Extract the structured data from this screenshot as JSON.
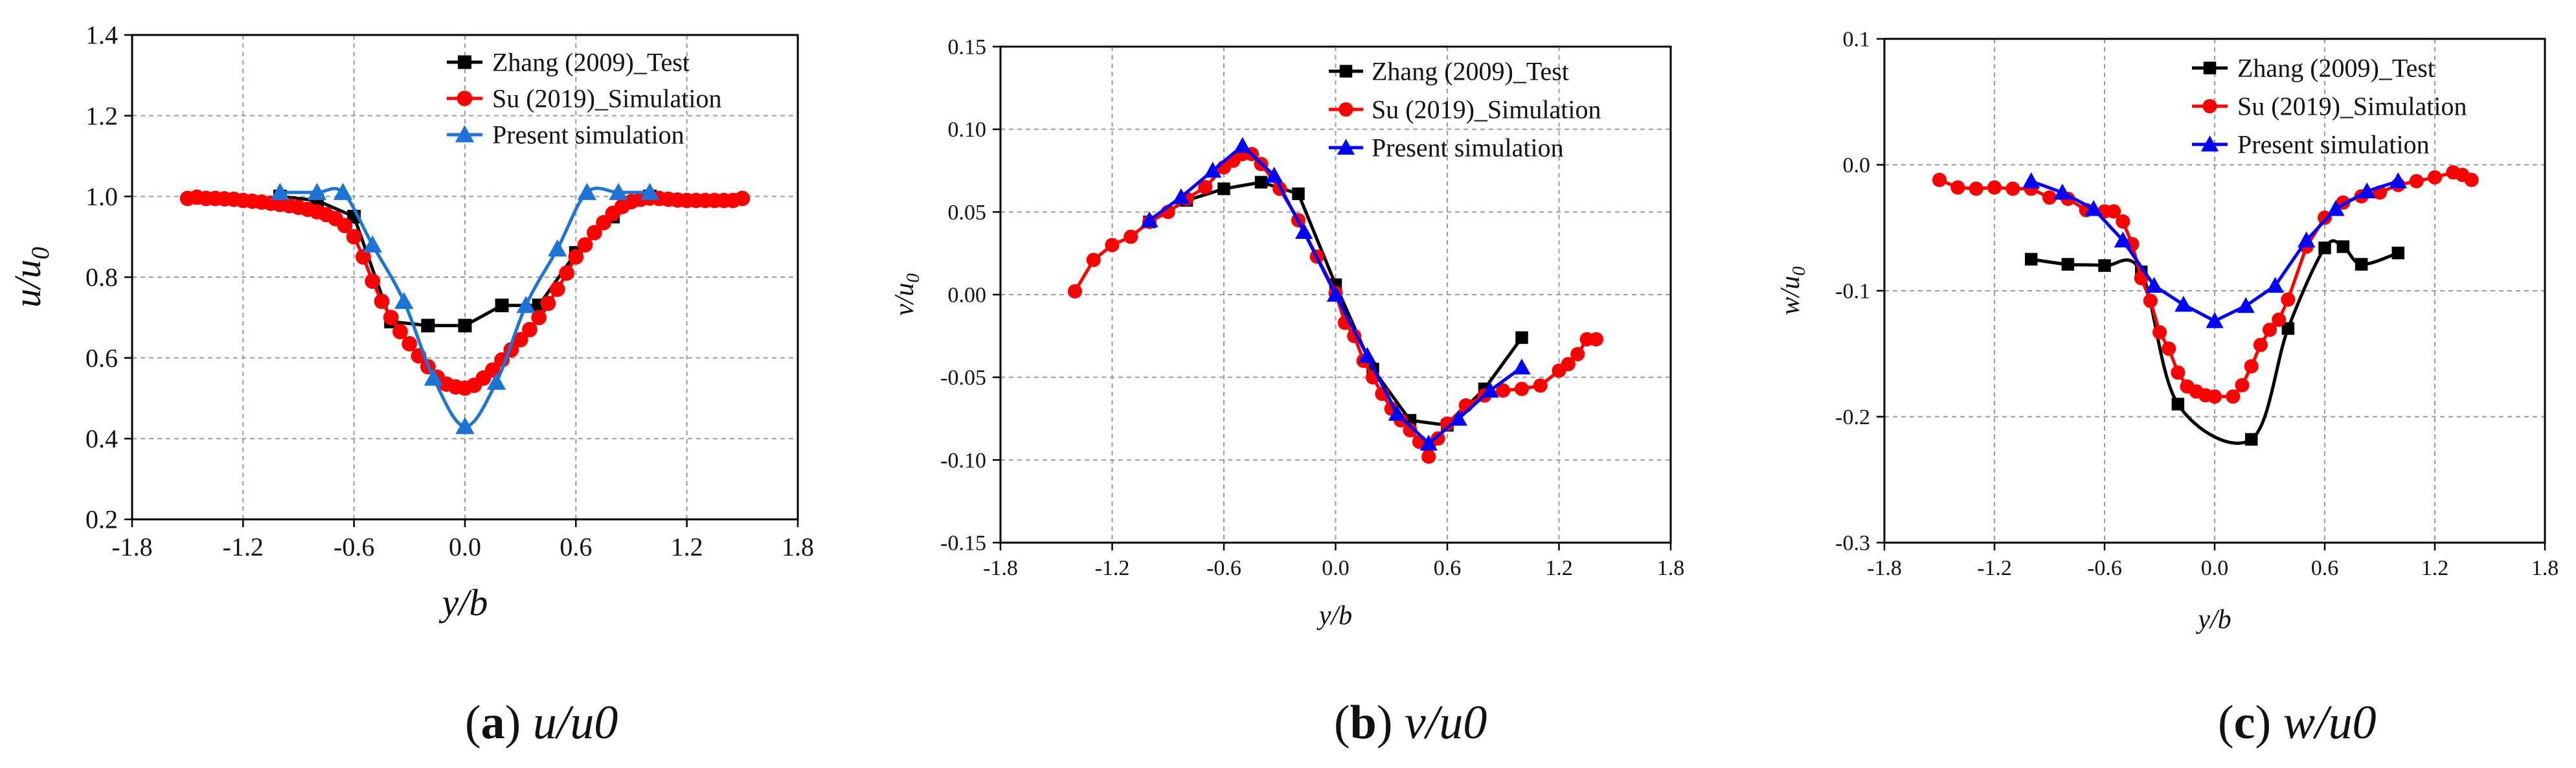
{
  "chart_data": [
    {
      "type": "line",
      "panel": "a",
      "caption_letter": "a",
      "caption_var": "u/u",
      "caption_sub": "0",
      "xlabel": "y/b",
      "ylabel_main": "u/u",
      "ylabel_sub": "0",
      "xlim": [
        -1.8,
        1.8
      ],
      "ylim": [
        0.2,
        1.4
      ],
      "xticks": [
        -1.8,
        -1.2,
        -0.6,
        0.0,
        0.6,
        1.2,
        1.8
      ],
      "xtick_labels": [
        "-1.8",
        "-1.2",
        "-0.6",
        "0.0",
        "0.6",
        "1.2",
        "1.8"
      ],
      "yticks": [
        0.2,
        0.4,
        0.6,
        0.8,
        1.0,
        1.2,
        1.4
      ],
      "ytick_labels": [
        "0.2",
        "0.4",
        "0.6",
        "0.8",
        "1.0",
        "1.2",
        "1.4"
      ],
      "grid": true,
      "legend_position": "top-right",
      "series": [
        {
          "name": "Zhang (2009)_Test",
          "color": "#000000",
          "marker": "square",
          "x": [
            -1.0,
            -0.8,
            -0.6,
            -0.4,
            -0.2,
            0.0,
            0.2,
            0.4,
            0.6,
            0.8,
            1.0
          ],
          "y": [
            1.0,
            0.99,
            0.95,
            0.69,
            0.68,
            0.68,
            0.73,
            0.73,
            0.86,
            0.95,
            1.0
          ]
        },
        {
          "name": "Su (2019)_Simulation",
          "color": "#ff0000",
          "marker": "circle",
          "x": [
            -1.5,
            -1.45,
            -1.4,
            -1.35,
            -1.3,
            -1.25,
            -1.2,
            -1.15,
            -1.1,
            -1.05,
            -1.0,
            -0.95,
            -0.9,
            -0.85,
            -0.8,
            -0.75,
            -0.7,
            -0.65,
            -0.6,
            -0.55,
            -0.5,
            -0.45,
            -0.4,
            -0.35,
            -0.3,
            -0.25,
            -0.2,
            -0.15,
            -0.1,
            -0.05,
            0.0,
            0.05,
            0.1,
            0.15,
            0.2,
            0.25,
            0.3,
            0.35,
            0.4,
            0.45,
            0.5,
            0.55,
            0.6,
            0.65,
            0.7,
            0.75,
            0.8,
            0.85,
            0.9,
            0.95,
            1.0,
            1.05,
            1.1,
            1.15,
            1.2,
            1.25,
            1.3,
            1.35,
            1.4,
            1.45,
            1.5
          ],
          "y": [
            0.995,
            0.998,
            0.995,
            0.995,
            0.994,
            0.993,
            0.99,
            0.988,
            0.986,
            0.983,
            0.98,
            0.977,
            0.973,
            0.968,
            0.962,
            0.955,
            0.945,
            0.928,
            0.9,
            0.85,
            0.79,
            0.74,
            0.7,
            0.665,
            0.635,
            0.605,
            0.578,
            0.552,
            0.535,
            0.528,
            0.525,
            0.532,
            0.55,
            0.57,
            0.595,
            0.62,
            0.645,
            0.67,
            0.7,
            0.735,
            0.77,
            0.81,
            0.85,
            0.88,
            0.91,
            0.935,
            0.958,
            0.975,
            0.987,
            0.993,
            0.996,
            0.995,
            0.993,
            0.991,
            0.99,
            0.99,
            0.99,
            0.99,
            0.99,
            0.99,
            0.995
          ]
        },
        {
          "name": "Present simulation",
          "color": "#1e74d6",
          "marker": "triangle",
          "x": [
            -1.0,
            -0.8,
            -0.66,
            -0.5,
            -0.33,
            -0.17,
            0.0,
            0.17,
            0.33,
            0.5,
            0.66,
            0.83,
            1.0
          ],
          "y": [
            1.01,
            1.01,
            1.01,
            0.88,
            0.74,
            0.55,
            0.43,
            0.54,
            0.73,
            0.87,
            1.01,
            1.01,
            1.01
          ],
          "smooth": true
        }
      ]
    },
    {
      "type": "line",
      "panel": "b",
      "caption_letter": "b",
      "caption_var": "v/u",
      "caption_sub": "0",
      "xlabel": "y/b",
      "ylabel_main": "v/u",
      "ylabel_sub": "0",
      "xlim": [
        -1.8,
        1.8
      ],
      "ylim": [
        -0.15,
        0.15
      ],
      "xticks": [
        -1.8,
        -1.2,
        -0.6,
        0.0,
        0.6,
        1.2,
        1.8
      ],
      "xtick_labels": [
        "-1.8",
        "-1.2",
        "-0.6",
        "0.0",
        "0.6",
        "1.2",
        "1.8"
      ],
      "yticks": [
        -0.15,
        -0.1,
        -0.05,
        0.0,
        0.05,
        0.1,
        0.15
      ],
      "ytick_labels": [
        "-0.15",
        "-0.10",
        "-0.05",
        "0.00",
        "0.05",
        "0.10",
        "0.15"
      ],
      "grid": true,
      "legend_position": "top-right",
      "series": [
        {
          "name": "Zhang (2009)_Test",
          "color": "#000000",
          "marker": "square",
          "x": [
            -1.0,
            -0.8,
            -0.6,
            -0.4,
            -0.2,
            0.0,
            0.2,
            0.4,
            0.6,
            0.8,
            1.0
          ],
          "y": [
            0.044,
            0.057,
            0.064,
            0.068,
            0.061,
            0.006,
            -0.045,
            -0.076,
            -0.079,
            -0.057,
            -0.026
          ]
        },
        {
          "name": "Su (2019)_Simulation",
          "color": "#ff0000",
          "marker": "circle",
          "x": [
            -1.4,
            -1.3,
            -1.2,
            -1.1,
            -1.0,
            -0.9,
            -0.8,
            -0.7,
            -0.6,
            -0.55,
            -0.5,
            -0.45,
            -0.4,
            -0.3,
            -0.2,
            -0.1,
            0.0,
            0.05,
            0.1,
            0.15,
            0.2,
            0.25,
            0.3,
            0.35,
            0.4,
            0.45,
            0.5,
            0.55,
            0.6,
            0.7,
            0.8,
            0.9,
            1.0,
            1.1,
            1.2,
            1.25,
            1.3,
            1.35,
            1.4
          ],
          "y": [
            0.002,
            0.021,
            0.03,
            0.035,
            0.044,
            0.05,
            0.058,
            0.065,
            0.077,
            0.081,
            0.085,
            0.085,
            0.079,
            0.064,
            0.045,
            0.023,
            0.001,
            -0.017,
            -0.025,
            -0.04,
            -0.05,
            -0.06,
            -0.069,
            -0.076,
            -0.082,
            -0.089,
            -0.098,
            -0.087,
            -0.078,
            -0.067,
            -0.061,
            -0.058,
            -0.057,
            -0.055,
            -0.046,
            -0.042,
            -0.036,
            -0.027,
            -0.027
          ]
        },
        {
          "name": "Present simulation",
          "color": "#0000ff",
          "marker": "triangle",
          "x": [
            -1.0,
            -0.83,
            -0.66,
            -0.5,
            -0.33,
            -0.17,
            0.0,
            0.17,
            0.33,
            0.5,
            0.66,
            0.83,
            1.0
          ],
          "y": [
            0.045,
            0.059,
            0.075,
            0.09,
            0.072,
            0.038,
            0.0,
            -0.037,
            -0.072,
            -0.09,
            -0.075,
            -0.058,
            -0.044
          ]
        }
      ]
    },
    {
      "type": "line",
      "panel": "c",
      "caption_letter": "c",
      "caption_var": "w/u",
      "caption_sub": "0",
      "xlabel": "y/b",
      "ylabel_main": "w/u",
      "ylabel_sub": "0",
      "xlim": [
        -1.8,
        1.8
      ],
      "ylim": [
        -0.3,
        0.1
      ],
      "xticks": [
        -1.8,
        -1.2,
        -0.6,
        0.0,
        0.6,
        1.2,
        1.8
      ],
      "xtick_labels": [
        "-1.8",
        "-1.2",
        "-0.6",
        "0.0",
        "0.6",
        "1.2",
        "1.8"
      ],
      "yticks": [
        -0.3,
        -0.2,
        -0.1,
        0.0,
        0.1
      ],
      "ytick_labels": [
        "-0.3",
        "-0.2",
        "-0.1",
        "0.0",
        "0.1"
      ],
      "grid": true,
      "legend_position": "top-right",
      "series": [
        {
          "name": "Zhang (2009)_Test",
          "color": "#000000",
          "marker": "square",
          "x": [
            -1.0,
            -0.8,
            -0.6,
            -0.4,
            -0.2,
            0.2,
            0.4,
            0.6,
            0.7,
            0.8,
            1.0
          ],
          "y": [
            -0.075,
            -0.079,
            -0.08,
            -0.085,
            -0.19,
            -0.218,
            -0.13,
            -0.066,
            -0.065,
            -0.079,
            -0.07
          ],
          "smooth": true
        },
        {
          "name": "Su (2019)_Simulation",
          "color": "#ff0000",
          "marker": "circle",
          "x": [
            -1.5,
            -1.4,
            -1.3,
            -1.2,
            -1.1,
            -1.0,
            -0.9,
            -0.8,
            -0.7,
            -0.6,
            -0.55,
            -0.5,
            -0.45,
            -0.4,
            -0.35,
            -0.3,
            -0.25,
            -0.2,
            -0.15,
            -0.1,
            -0.05,
            0.0,
            0.1,
            0.15,
            0.2,
            0.25,
            0.3,
            0.35,
            0.4,
            0.5,
            0.6,
            0.7,
            0.8,
            0.9,
            1.0,
            1.1,
            1.2,
            1.3,
            1.35,
            1.4
          ],
          "y": [
            -0.012,
            -0.018,
            -0.019,
            -0.018,
            -0.019,
            -0.019,
            -0.026,
            -0.027,
            -0.036,
            -0.037,
            -0.037,
            -0.045,
            -0.063,
            -0.09,
            -0.108,
            -0.133,
            -0.146,
            -0.165,
            -0.176,
            -0.18,
            -0.183,
            -0.184,
            -0.184,
            -0.175,
            -0.16,
            -0.143,
            -0.131,
            -0.123,
            -0.107,
            -0.065,
            -0.042,
            -0.03,
            -0.025,
            -0.022,
            -0.016,
            -0.013,
            -0.01,
            -0.006,
            -0.008,
            -0.012
          ]
        },
        {
          "name": "Present simulation",
          "color": "#0000ff",
          "marker": "triangle",
          "x": [
            -1.0,
            -0.83,
            -0.66,
            -0.5,
            -0.33,
            -0.17,
            0.0,
            0.17,
            0.33,
            0.5,
            0.66,
            0.83,
            1.0
          ],
          "y": [
            -0.013,
            -0.022,
            -0.035,
            -0.06,
            -0.096,
            -0.111,
            -0.124,
            -0.112,
            -0.096,
            -0.06,
            -0.035,
            -0.021,
            -0.013
          ]
        }
      ]
    }
  ]
}
